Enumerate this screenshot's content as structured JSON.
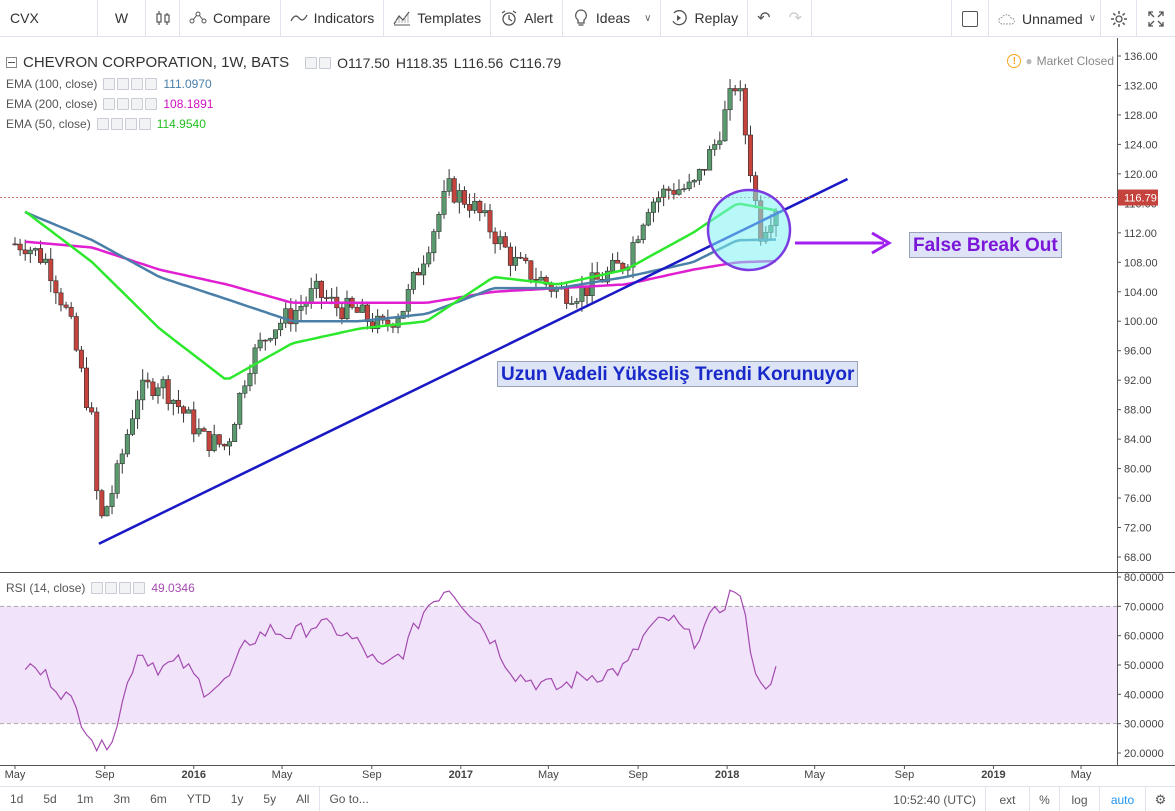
{
  "toolbar": {
    "symbol": "CVX",
    "interval": "W",
    "compare": "Compare",
    "indicators": "Indicators",
    "templates": "Templates",
    "alert": "Alert",
    "ideas": "Ideas",
    "replay": "Replay",
    "layout_name": "Unnamed"
  },
  "legend": {
    "title": "CHEVRON CORPORATION, 1W, BATS",
    "open": "O117.50",
    "high": "H118.35",
    "low": "L116.56",
    "close": "C116.79",
    "market_status": "Market Closed",
    "ema100_label": "EMA (100, close)",
    "ema100_value": "111.0970",
    "ema200_label": "EMA (200, close)",
    "ema200_value": "108.1891",
    "ema50_label": "EMA (50, close)",
    "ema50_value": "114.9540",
    "rsi_label": "RSI (14, close)",
    "rsi_value": "49.0346"
  },
  "colors": {
    "up": "#5a9a6e",
    "down": "#c5433d",
    "ema100": "#4a7fa8",
    "ema200": "#e020d0",
    "ema50": "#2ee82e",
    "rsi": "#a44bb0",
    "rsi_band": "#f1e3fa",
    "trendline": "#1919c6",
    "circle_fill": "#7ef3f3",
    "circle_stroke": "#7a3be0",
    "arrow": "#a020f0"
  },
  "annotations": {
    "false_breakout": "False Break Out",
    "trend": "Uzun Vadeli Yükseliş Trendi Korunuyor"
  },
  "last_price": "116.79",
  "price_axis": [
    "136.00",
    "132.00",
    "128.00",
    "124.00",
    "120.00",
    "116.00",
    "112.00",
    "108.00",
    "104.00",
    "100.00",
    "96.00",
    "92.00",
    "88.00",
    "84.00",
    "80.00",
    "76.00",
    "72.00",
    "68.00"
  ],
  "rsi_axis": [
    "80.0000",
    "70.0000",
    "60.0000",
    "50.0000",
    "40.0000",
    "30.0000",
    "20.0000"
  ],
  "time_axis": [
    "May",
    "Sep",
    "2016",
    "May",
    "Sep",
    "2017",
    "May",
    "Sep",
    "2018",
    "May",
    "Sep",
    "2019",
    "May"
  ],
  "bottom": {
    "ranges": [
      "1d",
      "5d",
      "1m",
      "3m",
      "6m",
      "YTD",
      "1y",
      "5y",
      "All"
    ],
    "goto": "Go to...",
    "clock": "10:52:40 (UTC)",
    "ext": "ext",
    "pct": "%",
    "log": "log",
    "auto": "auto"
  },
  "chart_data": {
    "type": "candlestick",
    "title": "CHEVRON CORPORATION, 1W, BATS",
    "x_range": [
      "2015-05",
      "2019-06"
    ],
    "y_range": [
      66,
      138
    ],
    "rsi_range": [
      17,
      81
    ],
    "rsi_bands": [
      30,
      70
    ],
    "close_path": [
      [
        "2015-05",
        110.5
      ],
      [
        "2015-06",
        108
      ],
      [
        "2015-07",
        100
      ],
      [
        "2015-08",
        86
      ],
      [
        "2015-08-24",
        72
      ],
      [
        "2015-09",
        78
      ],
      [
        "2015-10",
        90
      ],
      [
        "2015-11",
        92
      ],
      [
        "2015-12",
        88
      ],
      [
        "2016-01",
        84
      ],
      [
        "2016-02",
        83
      ],
      [
        "2016-03",
        94
      ],
      [
        "2016-04",
        99
      ],
      [
        "2016-05",
        101
      ],
      [
        "2016-06",
        104
      ],
      [
        "2016-07",
        102
      ],
      [
        "2016-08",
        101
      ],
      [
        "2016-09",
        99
      ],
      [
        "2016-10",
        102
      ],
      [
        "2016-11",
        110
      ],
      [
        "2016-12",
        118
      ],
      [
        "2017-01",
        116
      ],
      [
        "2017-02",
        112
      ],
      [
        "2017-03",
        108
      ],
      [
        "2017-04",
        106
      ],
      [
        "2017-05",
        104
      ],
      [
        "2017-06",
        104
      ],
      [
        "2017-07",
        106
      ],
      [
        "2017-08",
        108
      ],
      [
        "2017-09",
        116
      ],
      [
        "2017-10",
        118
      ],
      [
        "2017-11",
        118
      ],
      [
        "2017-12",
        124
      ],
      [
        "2018-01",
        133
      ],
      [
        "2018-02",
        112
      ],
      [
        "2018-03",
        116.79
      ]
    ],
    "ema50": [
      [
        "2015-05",
        114.9
      ],
      [
        "2015-08",
        108
      ],
      [
        "2015-11",
        99
      ],
      [
        "2016-02",
        92
      ],
      [
        "2016-05",
        97
      ],
      [
        "2016-08",
        99
      ],
      [
        "2016-11",
        100
      ],
      [
        "2017-02",
        106
      ],
      [
        "2017-05",
        105
      ],
      [
        "2017-08",
        107
      ],
      [
        "2017-11",
        112
      ],
      [
        "2018-01",
        116
      ],
      [
        "2018-03",
        114.95
      ]
    ],
    "ema100": [
      [
        "2015-05",
        114.8
      ],
      [
        "2015-08",
        111
      ],
      [
        "2015-11",
        106
      ],
      [
        "2016-02",
        103
      ],
      [
        "2016-05",
        100
      ],
      [
        "2016-08",
        100
      ],
      [
        "2016-11",
        101
      ],
      [
        "2017-02",
        104.5
      ],
      [
        "2017-05",
        104.5
      ],
      [
        "2017-08",
        106
      ],
      [
        "2017-11",
        108
      ],
      [
        "2018-01",
        111
      ],
      [
        "2018-03",
        111.1
      ]
    ],
    "ema200": [
      [
        "2015-05",
        110.8
      ],
      [
        "2015-08",
        110
      ],
      [
        "2015-11",
        107
      ],
      [
        "2016-02",
        105
      ],
      [
        "2016-05",
        102.5
      ],
      [
        "2016-08",
        102.5
      ],
      [
        "2016-11",
        102.5
      ],
      [
        "2017-02",
        104
      ],
      [
        "2017-05",
        104.5
      ],
      [
        "2017-08",
        105
      ],
      [
        "2017-11",
        107
      ],
      [
        "2018-01",
        108
      ],
      [
        "2018-03",
        108.19
      ]
    ],
    "trendline": [
      [
        "2015-08-24",
        69.8
      ],
      [
        "2018-06",
        119.3
      ]
    ],
    "rsi": [
      [
        "2015-05",
        50
      ],
      [
        "2015-06",
        46
      ],
      [
        "2015-07",
        38
      ],
      [
        "2015-08",
        26
      ],
      [
        "2015-08-24",
        20
      ],
      [
        "2015-09",
        28
      ],
      [
        "2015-10",
        55
      ],
      [
        "2015-11",
        49
      ],
      [
        "2015-12",
        51
      ],
      [
        "2016-01",
        42
      ],
      [
        "2016-02",
        44
      ],
      [
        "2016-03",
        58
      ],
      [
        "2016-04",
        62
      ],
      [
        "2016-05",
        60
      ],
      [
        "2016-06",
        64
      ],
      [
        "2016-07",
        62
      ],
      [
        "2016-08",
        57
      ],
      [
        "2016-09",
        48
      ],
      [
        "2016-10",
        55
      ],
      [
        "2016-11",
        70
      ],
      [
        "2016-12",
        77
      ],
      [
        "2017-01",
        68
      ],
      [
        "2017-02",
        58
      ],
      [
        "2017-03",
        47
      ],
      [
        "2017-04",
        44
      ],
      [
        "2017-05",
        42
      ],
      [
        "2017-06",
        46
      ],
      [
        "2017-07",
        47
      ],
      [
        "2017-08",
        49
      ],
      [
        "2017-09",
        62
      ],
      [
        "2017-10",
        66
      ],
      [
        "2017-11",
        58
      ],
      [
        "2017-12",
        67
      ],
      [
        "2018-01",
        77
      ],
      [
        "2018-02",
        42
      ],
      [
        "2018-03",
        49.03
      ]
    ]
  }
}
